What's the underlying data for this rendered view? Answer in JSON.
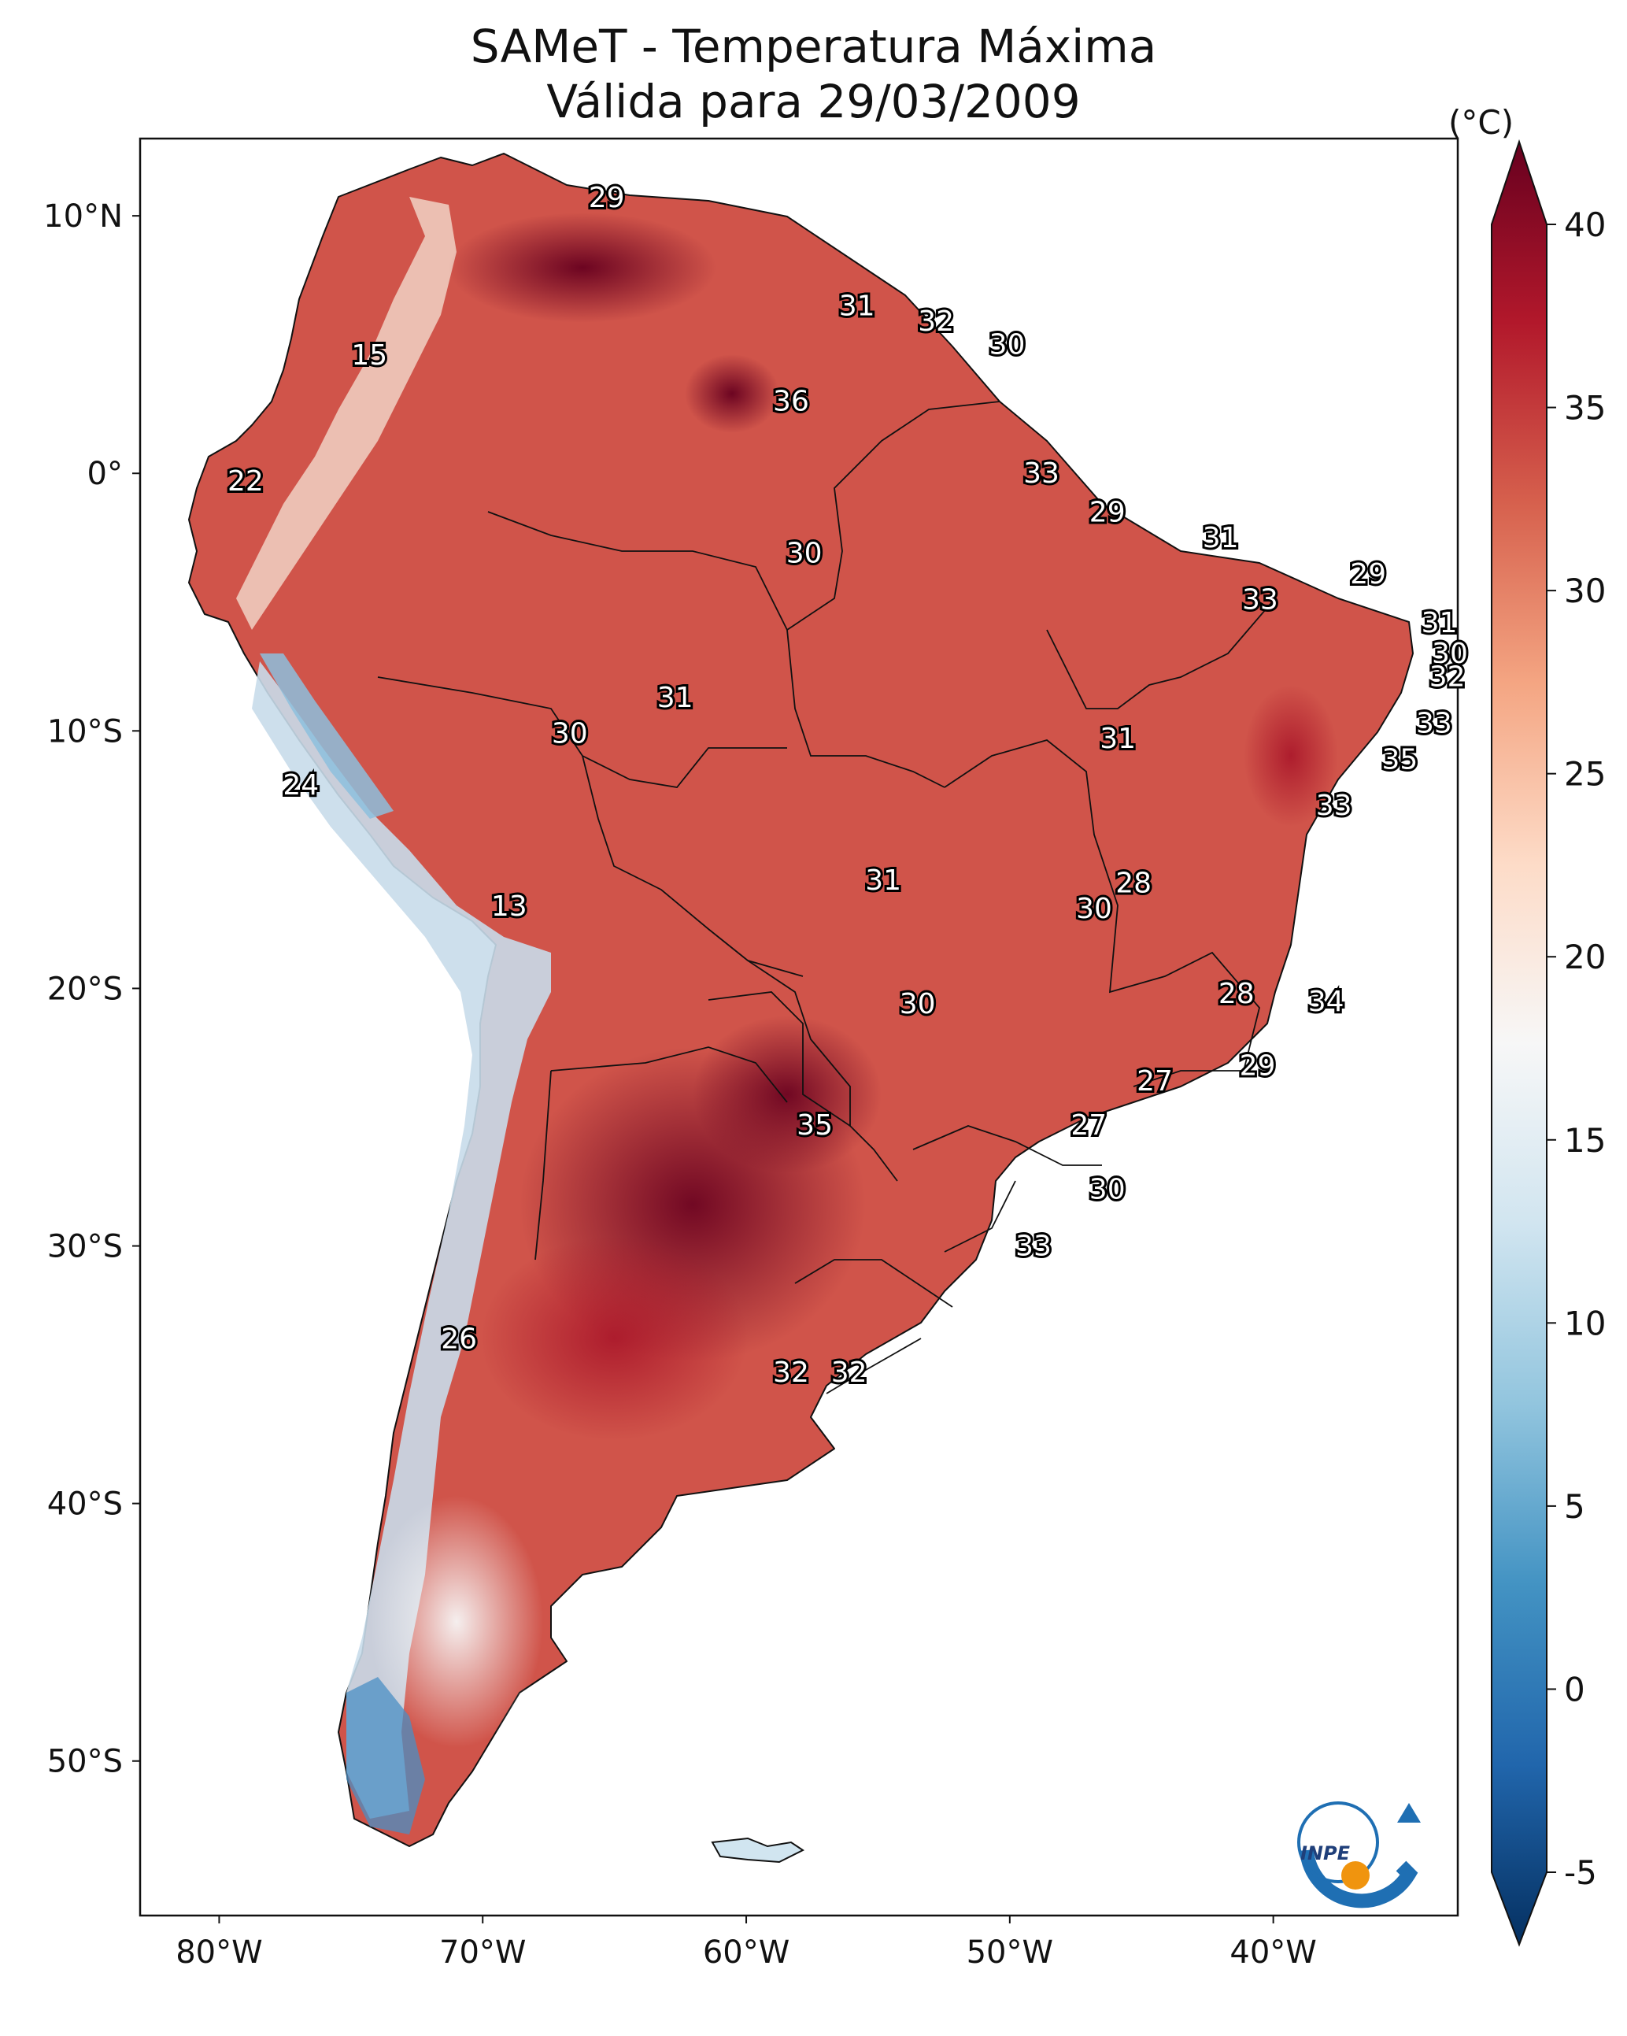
{
  "title": {
    "line1": "SAMeT - Temperatura Máxima",
    "line2": "Válida para 29/03/2009"
  },
  "map": {
    "lon_range": [
      -83,
      -33
    ],
    "lat_range": [
      -56,
      13
    ],
    "lon_ticks": [
      {
        "value": -80,
        "label": "80°W"
      },
      {
        "value": -70,
        "label": "70°W"
      },
      {
        "value": -60,
        "label": "60°W"
      },
      {
        "value": -50,
        "label": "50°W"
      },
      {
        "value": -40,
        "label": "40°W"
      }
    ],
    "lat_ticks": [
      {
        "value": 10,
        "label": "10°N"
      },
      {
        "value": 0,
        "label": "0°"
      },
      {
        "value": -10,
        "label": "10°S"
      },
      {
        "value": -20,
        "label": "20°S"
      },
      {
        "value": -30,
        "label": "30°S"
      },
      {
        "value": -40,
        "label": "40°S"
      },
      {
        "value": -50,
        "label": "50°S"
      }
    ],
    "values": [
      {
        "label": "29",
        "lon": -65.3,
        "lat": 10.7
      },
      {
        "label": "31",
        "lon": -55.8,
        "lat": 6.5
      },
      {
        "label": "32",
        "lon": -52.8,
        "lat": 5.9
      },
      {
        "label": "30",
        "lon": -50.1,
        "lat": 5.0
      },
      {
        "label": "15",
        "lon": -74.3,
        "lat": 4.6
      },
      {
        "label": "36",
        "lon": -58.3,
        "lat": 2.8
      },
      {
        "label": "33",
        "lon": -48.8,
        "lat": 0.0
      },
      {
        "label": "22",
        "lon": -79.0,
        "lat": -0.3
      },
      {
        "label": "29",
        "lon": -46.3,
        "lat": -1.5
      },
      {
        "label": "31",
        "lon": -42.0,
        "lat": -2.5
      },
      {
        "label": "30",
        "lon": -57.8,
        "lat": -3.1
      },
      {
        "label": "29",
        "lon": -36.4,
        "lat": -3.9
      },
      {
        "label": "33",
        "lon": -40.5,
        "lat": -4.9
      },
      {
        "label": "31",
        "lon": -33.7,
        "lat": -5.8
      },
      {
        "label": "30",
        "lon": -33.3,
        "lat": -7.0
      },
      {
        "label": "32",
        "lon": -33.4,
        "lat": -7.9
      },
      {
        "label": "31",
        "lon": -62.7,
        "lat": -8.7
      },
      {
        "label": "33",
        "lon": -33.9,
        "lat": -9.7
      },
      {
        "label": "30",
        "lon": -66.7,
        "lat": -10.1
      },
      {
        "label": "31",
        "lon": -45.9,
        "lat": -10.3
      },
      {
        "label": "35",
        "lon": -35.2,
        "lat": -11.1
      },
      {
        "label": "24",
        "lon": -76.9,
        "lat": -12.1
      },
      {
        "label": "33",
        "lon": -37.7,
        "lat": -12.9
      },
      {
        "label": "31",
        "lon": -54.8,
        "lat": -15.8
      },
      {
        "label": "28",
        "lon": -45.3,
        "lat": -15.9
      },
      {
        "label": "30",
        "lon": -46.8,
        "lat": -16.9
      },
      {
        "label": "13",
        "lon": -69.0,
        "lat": -16.8
      },
      {
        "label": "28",
        "lon": -41.4,
        "lat": -20.2
      },
      {
        "label": "34",
        "lon": -38.0,
        "lat": -20.5
      },
      {
        "label": "30",
        "lon": -53.5,
        "lat": -20.6
      },
      {
        "label": "29",
        "lon": -40.6,
        "lat": -23.0
      },
      {
        "label": "27",
        "lon": -44.5,
        "lat": -23.6
      },
      {
        "label": "35",
        "lon": -57.4,
        "lat": -25.3
      },
      {
        "label": "27",
        "lon": -47.0,
        "lat": -25.3
      },
      {
        "label": "30",
        "lon": -46.3,
        "lat": -27.8
      },
      {
        "label": "33",
        "lon": -49.1,
        "lat": -30.0
      },
      {
        "label": "26",
        "lon": -70.9,
        "lat": -33.6
      },
      {
        "label": "32",
        "lon": -58.3,
        "lat": -34.9
      },
      {
        "label": "32",
        "lon": -56.1,
        "lat": -34.9
      }
    ]
  },
  "colorbar": {
    "unit": "(°C)",
    "min": -5,
    "max": 40,
    "ticks": [
      {
        "value": 40,
        "label": "40"
      },
      {
        "value": 35,
        "label": "35"
      },
      {
        "value": 30,
        "label": "30"
      },
      {
        "value": 25,
        "label": "25"
      },
      {
        "value": 20,
        "label": "20"
      },
      {
        "value": 15,
        "label": "15"
      },
      {
        "value": 10,
        "label": "10"
      },
      {
        "value": 5,
        "label": "5"
      },
      {
        "value": 0,
        "label": "0"
      },
      {
        "value": -5,
        "label": "-5"
      }
    ],
    "colors": [
      "#053061",
      "#2166ac",
      "#4393c3",
      "#92c5de",
      "#d1e5f0",
      "#f7f7f7",
      "#fddbc7",
      "#f4a582",
      "#d6604d",
      "#b2182b",
      "#67001f"
    ]
  },
  "logo": {
    "text": "INPE"
  }
}
